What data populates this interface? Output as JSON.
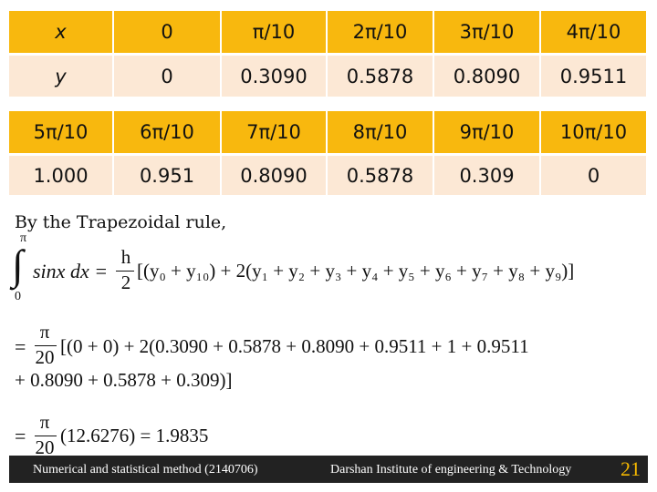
{
  "tables": [
    {
      "rows": [
        [
          "x",
          "0",
          "π/10",
          "2π/10",
          "3π/10",
          "4π/10"
        ],
        [
          "y",
          "0",
          "0.3090",
          "0.5878",
          "0.8090",
          "0.9511"
        ]
      ]
    },
    {
      "rows": [
        [
          "5π/10",
          "6π/10",
          "7π/10",
          "8π/10",
          "9π/10",
          "10π/10"
        ],
        [
          "1.000",
          "0.951",
          "0.8090",
          "0.5878",
          "0.309",
          "0"
        ]
      ]
    }
  ],
  "body": {
    "intro": "By the Trapezoidal rule,",
    "integral": {
      "upper": "π",
      "lower": "0",
      "integrand": "sinx dx =",
      "frac_num": "h",
      "frac_den": "2",
      "rhs": "[(y₀ + y₁₀) + 2(y₁ + y₂ + y₃ + y₄ + y₅ + y₆ + y₇ + y₈ + y₉)]"
    },
    "step1": {
      "prefix": "=",
      "frac_num": "π",
      "frac_den": "20",
      "rhs": "[(0 + 0) + 2(0.3090 + 0.5878 + 0.8090 + 0.9511 + 1 + 0.9511"
    },
    "step1_cont": "+ 0.8090 + 0.5878 + 0.309)]",
    "step2": {
      "prefix": "=",
      "frac_num": "π",
      "frac_den": "20",
      "rhs": "(12.6276) = 1.9835"
    }
  },
  "footer": {
    "course": "Numerical and statistical method  (2140706)",
    "institute": "Darshan Institute of engineering & Technology",
    "page": "21"
  }
}
